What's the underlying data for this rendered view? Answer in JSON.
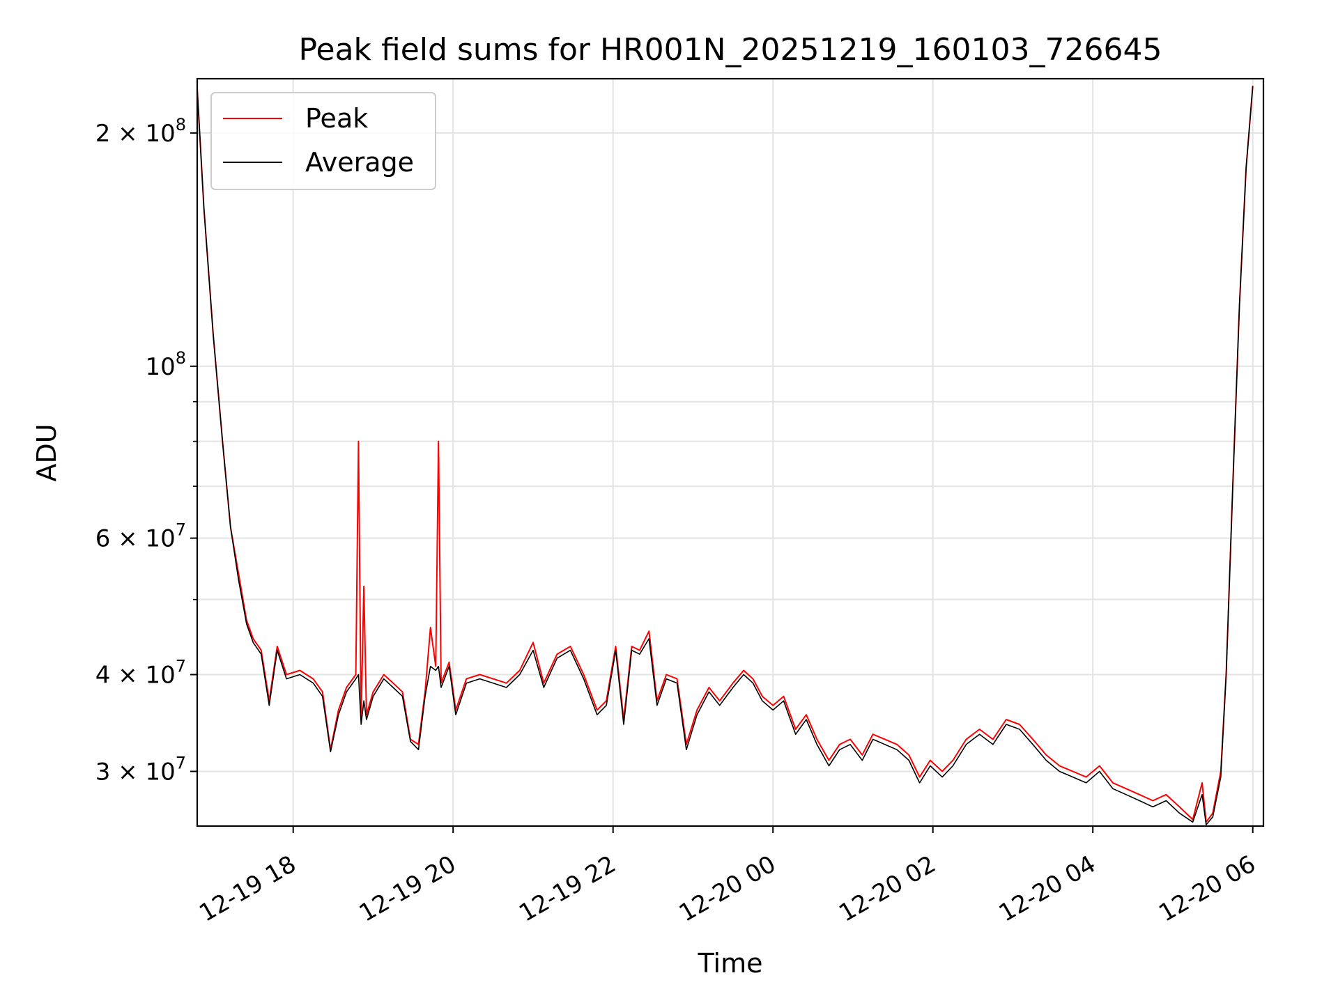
{
  "chart_data": {
    "type": "line",
    "title": "Peak field sums for HR001N_20251219_160103_726645",
    "xlabel": "Time",
    "ylabel": "ADU",
    "x_start": "2025-12-19 16:48",
    "x_end": "2025-12-20 06:00",
    "xlim": [
      "2025-12-19 16:48",
      "2025-12-20 06:08"
    ],
    "yscale": "log",
    "ylim": [
      25500000,
      235000000
    ],
    "grid": true,
    "legend_position": "upper left",
    "x_ticks": [
      {
        "value": "2025-12-19 18:00",
        "label": "12-19 18"
      },
      {
        "value": "2025-12-19 20:00",
        "label": "12-19 20"
      },
      {
        "value": "2025-12-19 22:00",
        "label": "12-19 22"
      },
      {
        "value": "2025-12-20 00:00",
        "label": "12-20 00"
      },
      {
        "value": "2025-12-20 02:00",
        "label": "12-20 02"
      },
      {
        "value": "2025-12-20 04:00",
        "label": "12-20 04"
      },
      {
        "value": "2025-12-20 06:00",
        "label": "12-20 06"
      }
    ],
    "y_ticks": [
      {
        "value": 30000000,
        "base": "3 × 10",
        "exp": "7"
      },
      {
        "value": 40000000,
        "base": "4 × 10",
        "exp": "7"
      },
      {
        "value": 60000000,
        "base": "6 × 10",
        "exp": "7"
      },
      {
        "value": 100000000,
        "base": "10",
        "exp": "8"
      },
      {
        "value": 200000000,
        "base": "2 × 10",
        "exp": "8"
      }
    ],
    "y_minor_ticks": [
      50000000,
      70000000,
      80000000,
      90000000
    ],
    "series": [
      {
        "name": "Peak",
        "color": "#ff0000",
        "points": [
          [
            "2025-12-19 16:48",
            228000000
          ],
          [
            "2025-12-19 16:53",
            160000000
          ],
          [
            "2025-12-19 17:00",
            110000000
          ],
          [
            "2025-12-19 17:07",
            80000000
          ],
          [
            "2025-12-19 17:13",
            62000000
          ],
          [
            "2025-12-19 17:19",
            54000000
          ],
          [
            "2025-12-19 17:25",
            47000000
          ],
          [
            "2025-12-19 17:30",
            44500000
          ],
          [
            "2025-12-19 17:36",
            43000000
          ],
          [
            "2025-12-19 17:42",
            37000000
          ],
          [
            "2025-12-19 17:48",
            43500000
          ],
          [
            "2025-12-19 17:55",
            40000000
          ],
          [
            "2025-12-19 18:05",
            40500000
          ],
          [
            "2025-12-19 18:15",
            39500000
          ],
          [
            "2025-12-19 18:22",
            38000000
          ],
          [
            "2025-12-19 18:28",
            32000000
          ],
          [
            "2025-12-19 18:34",
            36000000
          ],
          [
            "2025-12-19 18:40",
            38500000
          ],
          [
            "2025-12-19 18:47",
            40000000
          ],
          [
            "2025-12-19 18:49",
            80000000
          ],
          [
            "2025-12-19 18:51",
            35000000
          ],
          [
            "2025-12-19 18:53",
            52000000
          ],
          [
            "2025-12-19 18:55",
            35500000
          ],
          [
            "2025-12-19 19:00",
            38000000
          ],
          [
            "2025-12-19 19:08",
            40000000
          ],
          [
            "2025-12-19 19:15",
            39000000
          ],
          [
            "2025-12-19 19:22",
            38000000
          ],
          [
            "2025-12-19 19:28",
            33000000
          ],
          [
            "2025-12-19 19:34",
            32500000
          ],
          [
            "2025-12-19 19:39",
            38000000
          ],
          [
            "2025-12-19 19:43",
            46000000
          ],
          [
            "2025-12-19 19:47",
            41000000
          ],
          [
            "2025-12-19 19:49",
            80000000
          ],
          [
            "2025-12-19 19:51",
            39000000
          ],
          [
            "2025-12-19 19:57",
            41500000
          ],
          [
            "2025-12-19 20:02",
            36000000
          ],
          [
            "2025-12-19 20:10",
            39500000
          ],
          [
            "2025-12-19 20:20",
            40000000
          ],
          [
            "2025-12-19 20:30",
            39500000
          ],
          [
            "2025-12-19 20:40",
            39000000
          ],
          [
            "2025-12-19 20:50",
            40500000
          ],
          [
            "2025-12-19 21:00",
            44000000
          ],
          [
            "2025-12-19 21:08",
            39000000
          ],
          [
            "2025-12-19 21:18",
            42500000
          ],
          [
            "2025-12-19 21:28",
            43500000
          ],
          [
            "2025-12-19 21:38",
            40000000
          ],
          [
            "2025-12-19 21:48",
            36000000
          ],
          [
            "2025-12-19 21:55",
            37000000
          ],
          [
            "2025-12-19 22:02",
            43500000
          ],
          [
            "2025-12-19 22:08",
            35000000
          ],
          [
            "2025-12-19 22:14",
            43500000
          ],
          [
            "2025-12-19 22:20",
            43000000
          ],
          [
            "2025-12-19 22:27",
            45500000
          ],
          [
            "2025-12-19 22:33",
            37000000
          ],
          [
            "2025-12-19 22:40",
            40000000
          ],
          [
            "2025-12-19 22:48",
            39500000
          ],
          [
            "2025-12-19 22:55",
            32500000
          ],
          [
            "2025-12-19 23:03",
            36000000
          ],
          [
            "2025-12-19 23:12",
            38500000
          ],
          [
            "2025-12-19 23:20",
            37000000
          ],
          [
            "2025-12-19 23:30",
            39000000
          ],
          [
            "2025-12-19 23:38",
            40500000
          ],
          [
            "2025-12-19 23:45",
            39500000
          ],
          [
            "2025-12-19 23:52",
            37500000
          ],
          [
            "2025-12-20 00:00",
            36500000
          ],
          [
            "2025-12-20 00:08",
            37500000
          ],
          [
            "2025-12-20 00:17",
            34000000
          ],
          [
            "2025-12-20 00:25",
            35500000
          ],
          [
            "2025-12-20 00:33",
            33000000
          ],
          [
            "2025-12-20 00:42",
            31000000
          ],
          [
            "2025-12-20 00:50",
            32500000
          ],
          [
            "2025-12-20 00:58",
            33000000
          ],
          [
            "2025-12-20 01:07",
            31500000
          ],
          [
            "2025-12-20 01:15",
            33500000
          ],
          [
            "2025-12-20 01:24",
            33000000
          ],
          [
            "2025-12-20 01:33",
            32500000
          ],
          [
            "2025-12-20 01:42",
            31500000
          ],
          [
            "2025-12-20 01:50",
            29500000
          ],
          [
            "2025-12-20 01:58",
            31000000
          ],
          [
            "2025-12-20 02:07",
            30000000
          ],
          [
            "2025-12-20 02:15",
            31000000
          ],
          [
            "2025-12-20 02:25",
            33000000
          ],
          [
            "2025-12-20 02:35",
            34000000
          ],
          [
            "2025-12-20 02:45",
            33000000
          ],
          [
            "2025-12-20 02:55",
            35000000
          ],
          [
            "2025-12-20 03:05",
            34500000
          ],
          [
            "2025-12-20 03:15",
            33000000
          ],
          [
            "2025-12-20 03:25",
            31500000
          ],
          [
            "2025-12-20 03:35",
            30500000
          ],
          [
            "2025-12-20 03:45",
            30000000
          ],
          [
            "2025-12-20 03:55",
            29500000
          ],
          [
            "2025-12-20 04:05",
            30500000
          ],
          [
            "2025-12-20 04:15",
            29000000
          ],
          [
            "2025-12-20 04:25",
            28500000
          ],
          [
            "2025-12-20 04:35",
            28000000
          ],
          [
            "2025-12-20 04:45",
            27500000
          ],
          [
            "2025-12-20 04:55",
            28000000
          ],
          [
            "2025-12-20 05:05",
            27000000
          ],
          [
            "2025-12-20 05:15",
            26000000
          ],
          [
            "2025-12-20 05:22",
            29000000
          ],
          [
            "2025-12-20 05:25",
            25800000
          ],
          [
            "2025-12-20 05:30",
            26500000
          ],
          [
            "2025-12-20 05:36",
            30000000
          ],
          [
            "2025-12-20 05:40",
            40000000
          ],
          [
            "2025-12-20 05:45",
            70000000
          ],
          [
            "2025-12-20 05:50",
            120000000
          ],
          [
            "2025-12-20 05:55",
            180000000
          ],
          [
            "2025-12-20 06:00",
            230000000
          ]
        ]
      },
      {
        "name": "Average",
        "color": "#000000",
        "points": [
          [
            "2025-12-19 16:48",
            228000000
          ],
          [
            "2025-12-19 16:53",
            160000000
          ],
          [
            "2025-12-19 17:00",
            110000000
          ],
          [
            "2025-12-19 17:07",
            80000000
          ],
          [
            "2025-12-19 17:13",
            62000000
          ],
          [
            "2025-12-19 17:19",
            53000000
          ],
          [
            "2025-12-19 17:25",
            46500000
          ],
          [
            "2025-12-19 17:30",
            44000000
          ],
          [
            "2025-12-19 17:36",
            42500000
          ],
          [
            "2025-12-19 17:42",
            36500000
          ],
          [
            "2025-12-19 17:48",
            43000000
          ],
          [
            "2025-12-19 17:55",
            39500000
          ],
          [
            "2025-12-19 18:05",
            40000000
          ],
          [
            "2025-12-19 18:15",
            39000000
          ],
          [
            "2025-12-19 18:22",
            37500000
          ],
          [
            "2025-12-19 18:28",
            31800000
          ],
          [
            "2025-12-19 18:34",
            35500000
          ],
          [
            "2025-12-19 18:40",
            38000000
          ],
          [
            "2025-12-19 18:47",
            39500000
          ],
          [
            "2025-12-19 18:49",
            40000000
          ],
          [
            "2025-12-19 18:51",
            34500000
          ],
          [
            "2025-12-19 18:53",
            37000000
          ],
          [
            "2025-12-19 18:55",
            35000000
          ],
          [
            "2025-12-19 19:00",
            37500000
          ],
          [
            "2025-12-19 19:08",
            39500000
          ],
          [
            "2025-12-19 19:15",
            38500000
          ],
          [
            "2025-12-19 19:22",
            37500000
          ],
          [
            "2025-12-19 19:28",
            32800000
          ],
          [
            "2025-12-19 19:34",
            32000000
          ],
          [
            "2025-12-19 19:39",
            37500000
          ],
          [
            "2025-12-19 19:43",
            41000000
          ],
          [
            "2025-12-19 19:47",
            40500000
          ],
          [
            "2025-12-19 19:49",
            41000000
          ],
          [
            "2025-12-19 19:51",
            38500000
          ],
          [
            "2025-12-19 19:57",
            41000000
          ],
          [
            "2025-12-19 20:02",
            35500000
          ],
          [
            "2025-12-19 20:10",
            39000000
          ],
          [
            "2025-12-19 20:20",
            39500000
          ],
          [
            "2025-12-19 20:30",
            39000000
          ],
          [
            "2025-12-19 20:40",
            38500000
          ],
          [
            "2025-12-19 20:50",
            40000000
          ],
          [
            "2025-12-19 21:00",
            43000000
          ],
          [
            "2025-12-19 21:08",
            38500000
          ],
          [
            "2025-12-19 21:18",
            42000000
          ],
          [
            "2025-12-19 21:28",
            43000000
          ],
          [
            "2025-12-19 21:38",
            39500000
          ],
          [
            "2025-12-19 21:48",
            35500000
          ],
          [
            "2025-12-19 21:55",
            36500000
          ],
          [
            "2025-12-19 22:02",
            43000000
          ],
          [
            "2025-12-19 22:08",
            34500000
          ],
          [
            "2025-12-19 22:14",
            43000000
          ],
          [
            "2025-12-19 22:20",
            42500000
          ],
          [
            "2025-12-19 22:27",
            44500000
          ],
          [
            "2025-12-19 22:33",
            36500000
          ],
          [
            "2025-12-19 22:40",
            39500000
          ],
          [
            "2025-12-19 22:48",
            39000000
          ],
          [
            "2025-12-19 22:55",
            32000000
          ],
          [
            "2025-12-19 23:03",
            35500000
          ],
          [
            "2025-12-19 23:12",
            38000000
          ],
          [
            "2025-12-19 23:20",
            36500000
          ],
          [
            "2025-12-19 23:30",
            38500000
          ],
          [
            "2025-12-19 23:38",
            40000000
          ],
          [
            "2025-12-19 23:45",
            39000000
          ],
          [
            "2025-12-19 23:52",
            37000000
          ],
          [
            "2025-12-20 00:00",
            36000000
          ],
          [
            "2025-12-20 00:08",
            37000000
          ],
          [
            "2025-12-20 00:17",
            33500000
          ],
          [
            "2025-12-20 00:25",
            35000000
          ],
          [
            "2025-12-20 00:33",
            32500000
          ],
          [
            "2025-12-20 00:42",
            30500000
          ],
          [
            "2025-12-20 00:50",
            32000000
          ],
          [
            "2025-12-20 00:58",
            32500000
          ],
          [
            "2025-12-20 01:07",
            31000000
          ],
          [
            "2025-12-20 01:15",
            33000000
          ],
          [
            "2025-12-20 01:24",
            32500000
          ],
          [
            "2025-12-20 01:33",
            32000000
          ],
          [
            "2025-12-20 01:42",
            31000000
          ],
          [
            "2025-12-20 01:50",
            29000000
          ],
          [
            "2025-12-20 01:58",
            30500000
          ],
          [
            "2025-12-20 02:07",
            29500000
          ],
          [
            "2025-12-20 02:15",
            30500000
          ],
          [
            "2025-12-20 02:25",
            32500000
          ],
          [
            "2025-12-20 02:35",
            33500000
          ],
          [
            "2025-12-20 02:45",
            32500000
          ],
          [
            "2025-12-20 02:55",
            34500000
          ],
          [
            "2025-12-20 03:05",
            34000000
          ],
          [
            "2025-12-20 03:15",
            32500000
          ],
          [
            "2025-12-20 03:25",
            31000000
          ],
          [
            "2025-12-20 03:35",
            30000000
          ],
          [
            "2025-12-20 03:45",
            29500000
          ],
          [
            "2025-12-20 03:55",
            29000000
          ],
          [
            "2025-12-20 04:05",
            30000000
          ],
          [
            "2025-12-20 04:15",
            28500000
          ],
          [
            "2025-12-20 04:25",
            28000000
          ],
          [
            "2025-12-20 04:35",
            27500000
          ],
          [
            "2025-12-20 04:45",
            27000000
          ],
          [
            "2025-12-20 04:55",
            27500000
          ],
          [
            "2025-12-20 05:05",
            26500000
          ],
          [
            "2025-12-20 05:15",
            25800000
          ],
          [
            "2025-12-20 05:22",
            28000000
          ],
          [
            "2025-12-20 05:25",
            25600000
          ],
          [
            "2025-12-20 05:30",
            26200000
          ],
          [
            "2025-12-20 05:36",
            29500000
          ],
          [
            "2025-12-20 05:40",
            40000000
          ],
          [
            "2025-12-20 05:45",
            70000000
          ],
          [
            "2025-12-20 05:50",
            120000000
          ],
          [
            "2025-12-20 05:55",
            180000000
          ],
          [
            "2025-12-20 06:00",
            230000000
          ]
        ]
      }
    ]
  }
}
